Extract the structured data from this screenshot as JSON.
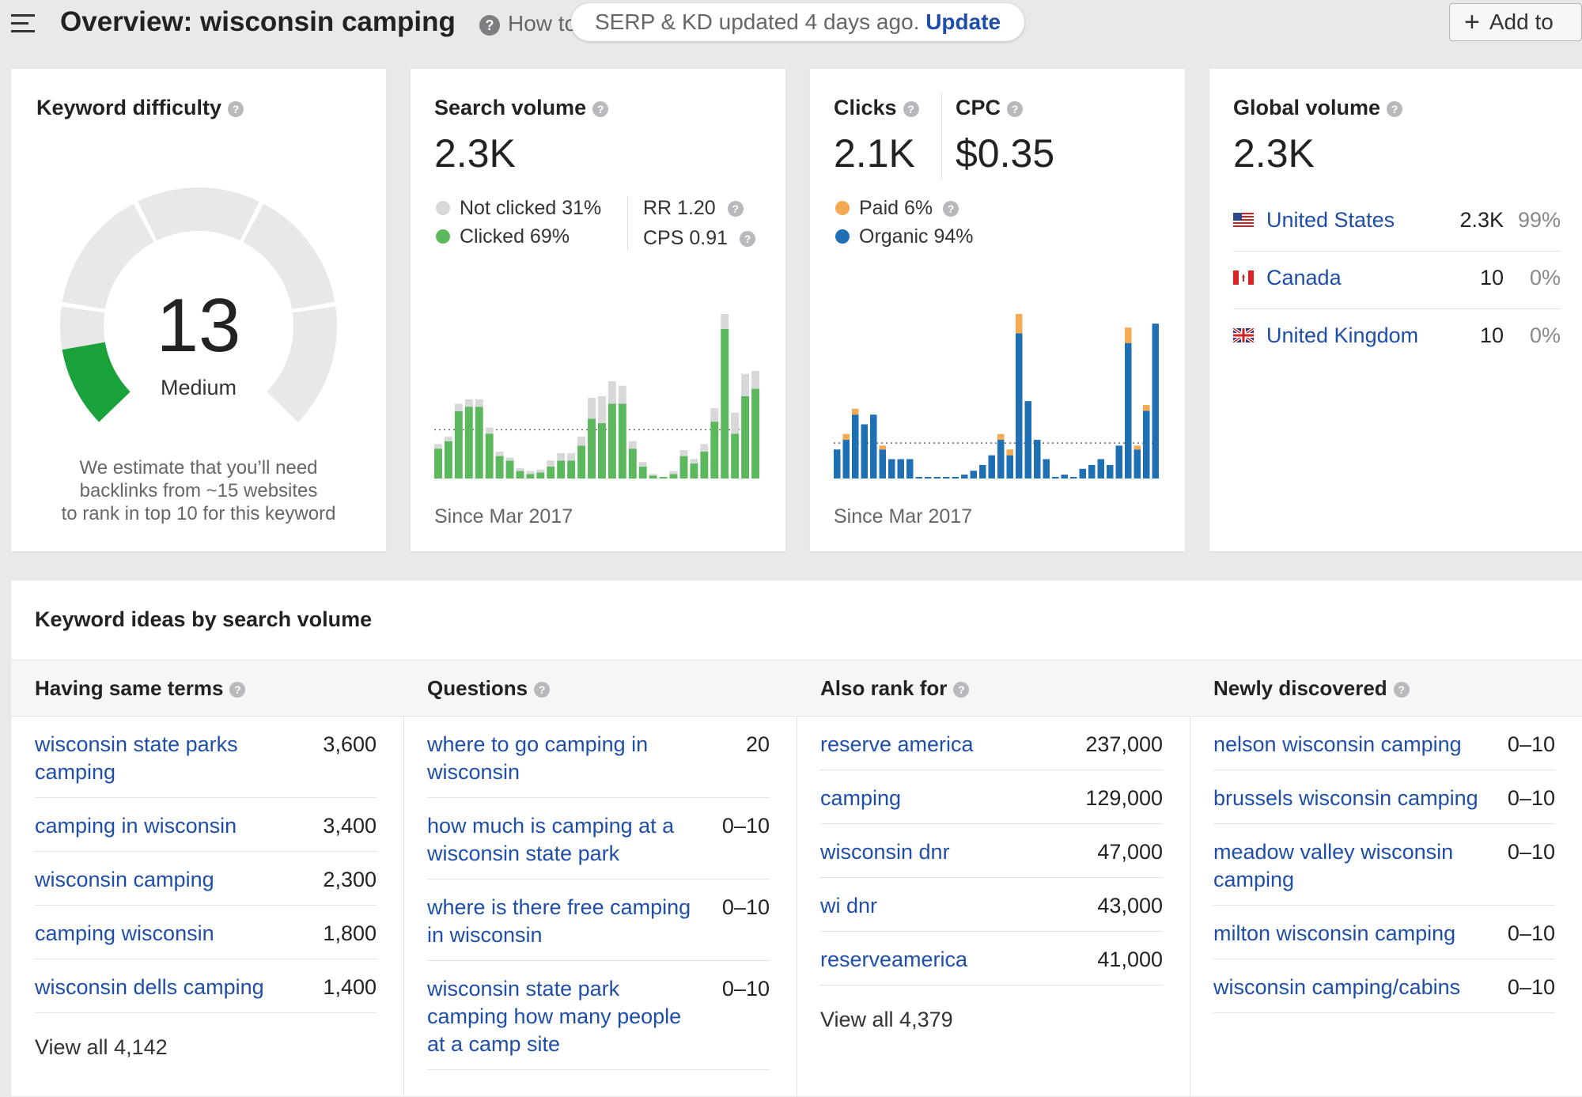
{
  "header": {
    "title": "Overview: wisconsin camping",
    "howto_label": "How to",
    "notice_text": "SERP & KD updated 4 days ago.",
    "notice_link": "Update",
    "add_button": "Add to"
  },
  "keyword_difficulty": {
    "title": "Keyword difficulty",
    "value": "13",
    "label": "Medium",
    "note_line1": "We estimate that you’ll need",
    "note_line2": "backlinks from ~15 websites",
    "note_line3": "to rank in top 10 for this keyword",
    "gauge_fill_fraction": 0.13
  },
  "search_volume": {
    "title": "Search volume",
    "value": "2.3K",
    "not_clicked": "Not clicked 31%",
    "clicked": "Clicked 69%",
    "rr": "RR 1.20",
    "cps": "CPS 0.91",
    "since": "Since Mar 2017"
  },
  "clicks": {
    "title": "Clicks",
    "value": "2.1K",
    "cpc_title": "CPC",
    "cpc_value": "$0.35",
    "paid": "Paid 6%",
    "organic": "Organic 94%",
    "since": "Since Mar 2017"
  },
  "global_volume": {
    "title": "Global volume",
    "value": "2.3K",
    "countries": [
      {
        "name": "United States",
        "volume": "2.3K",
        "pct": "99%",
        "flag": "us-flag-icon"
      },
      {
        "name": "Canada",
        "volume": "10",
        "pct": "0%",
        "flag": "ca-flag-icon"
      },
      {
        "name": "United Kingdom",
        "volume": "10",
        "pct": "0%",
        "flag": "uk-flag-icon"
      }
    ]
  },
  "ideas": {
    "title": "Keyword ideas by search volume",
    "columns": [
      {
        "heading": "Having same terms",
        "rows": [
          {
            "keyword": "wisconsin state parks camping",
            "volume": "3,600"
          },
          {
            "keyword": "camping in wisconsin",
            "volume": "3,400"
          },
          {
            "keyword": "wisconsin camping",
            "volume": "2,300"
          },
          {
            "keyword": "camping wisconsin",
            "volume": "1,800"
          },
          {
            "keyword": "wisconsin dells camping",
            "volume": "1,400"
          }
        ],
        "view_all": "View all 4,142"
      },
      {
        "heading": "Questions",
        "rows": [
          {
            "keyword": "where to go camping in wisconsin",
            "volume": "20"
          },
          {
            "keyword": "how much is camping at a wisconsin state park",
            "volume": "0–10"
          },
          {
            "keyword": "where is there free camping in wisconsin",
            "volume": "0–10"
          },
          {
            "keyword": "wisconsin state park camping how many people at a camp site",
            "volume": "0–10"
          }
        ],
        "view_all": ""
      },
      {
        "heading": "Also rank for",
        "rows": [
          {
            "keyword": "reserve america",
            "volume": "237,000"
          },
          {
            "keyword": "camping",
            "volume": "129,000"
          },
          {
            "keyword": "wisconsin dnr",
            "volume": "47,000"
          },
          {
            "keyword": "wi dnr",
            "volume": "43,000"
          },
          {
            "keyword": "reserveamerica",
            "volume": "41,000"
          }
        ],
        "view_all": "View all 4,379"
      },
      {
        "heading": "Newly discovered",
        "rows": [
          {
            "keyword": "nelson wisconsin camping",
            "volume": "0–10"
          },
          {
            "keyword": "brussels wisconsin camping",
            "volume": "0–10"
          },
          {
            "keyword": "meadow valley wisconsin camping",
            "volume": "0–10"
          },
          {
            "keyword": "milton wisconsin camping",
            "volume": "0–10"
          },
          {
            "keyword": "wisconsin camping/cabins",
            "volume": "0–10"
          }
        ],
        "view_all": ""
      }
    ]
  },
  "colors": {
    "clicked": "#5cb85c",
    "not_clicked": "#d8d8d8",
    "paid": "#f5a952",
    "organic": "#1f6fb5",
    "gauge_fill": "#1aa33a",
    "gauge_track": "#e8e8ea",
    "link": "#1e4ea8"
  },
  "chart_data": [
    {
      "type": "bar",
      "stacked": true,
      "title": "Search volume",
      "series": [
        {
          "name": "Clicked",
          "values": [
            20,
            25,
            45,
            48,
            48,
            30,
            15,
            12,
            5,
            3,
            4,
            8,
            12,
            12,
            22,
            40,
            37,
            50,
            50,
            20,
            8,
            2,
            0,
            3,
            15,
            10,
            18,
            38,
            100,
            30,
            55,
            60
          ]
        },
        {
          "name": "Not clicked",
          "values": [
            3,
            3,
            5,
            5,
            5,
            4,
            3,
            2,
            2,
            2,
            2,
            4,
            5,
            5,
            6,
            14,
            18,
            15,
            12,
            5,
            3,
            1,
            0,
            2,
            4,
            3,
            5,
            9,
            10,
            14,
            15,
            12
          ]
        }
      ]
    },
    {
      "type": "bar",
      "stacked": true,
      "title": "Clicks",
      "series": [
        {
          "name": "Organic",
          "values": [
            15,
            20,
            33,
            28,
            33,
            15,
            10,
            10,
            10,
            0,
            0,
            0,
            0,
            0,
            2,
            4,
            7,
            12,
            20,
            12,
            75,
            40,
            20,
            10,
            0,
            2,
            0,
            5,
            7,
            10,
            7,
            17,
            70,
            15,
            35,
            80
          ]
        },
        {
          "name": "Paid",
          "values": [
            0,
            3,
            3,
            0,
            0,
            2,
            0,
            0,
            0,
            0,
            0,
            0,
            0,
            0,
            0,
            0,
            0,
            0,
            3,
            3,
            10,
            0,
            0,
            0,
            0,
            0,
            0,
            0,
            0,
            0,
            0,
            0,
            8,
            2,
            3,
            0
          ]
        }
      ]
    }
  ]
}
